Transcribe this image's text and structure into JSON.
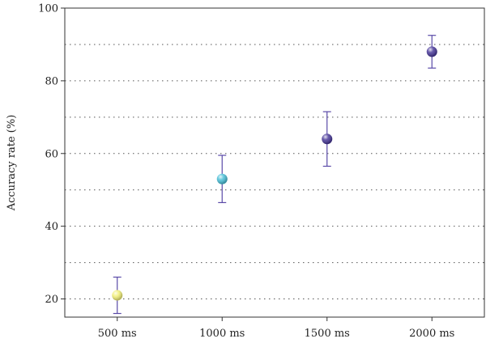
{
  "chart_data": {
    "type": "scatter",
    "title": "",
    "xlabel": "",
    "ylabel": "Accuracy rate (%)",
    "categories": [
      "500 ms",
      "1000 ms",
      "1500 ms",
      "2000 ms"
    ],
    "values": [
      21,
      53,
      64,
      88
    ],
    "error_low": [
      16,
      46.5,
      56.5,
      83.5
    ],
    "error_high": [
      26,
      59.5,
      71.5,
      92.5
    ],
    "point_colors": [
      "#f2f07a",
      "#4cc0d8",
      "#4a3a9a",
      "#4a3a9a"
    ],
    "error_bar_color": "#5a4aa8",
    "ylim": [
      15,
      100
    ],
    "yticks": [
      20,
      40,
      60,
      80,
      100
    ],
    "gridlines": [
      20,
      30,
      40,
      50,
      60,
      70,
      80,
      90
    ],
    "grid": true,
    "grid_style": "dotted"
  }
}
